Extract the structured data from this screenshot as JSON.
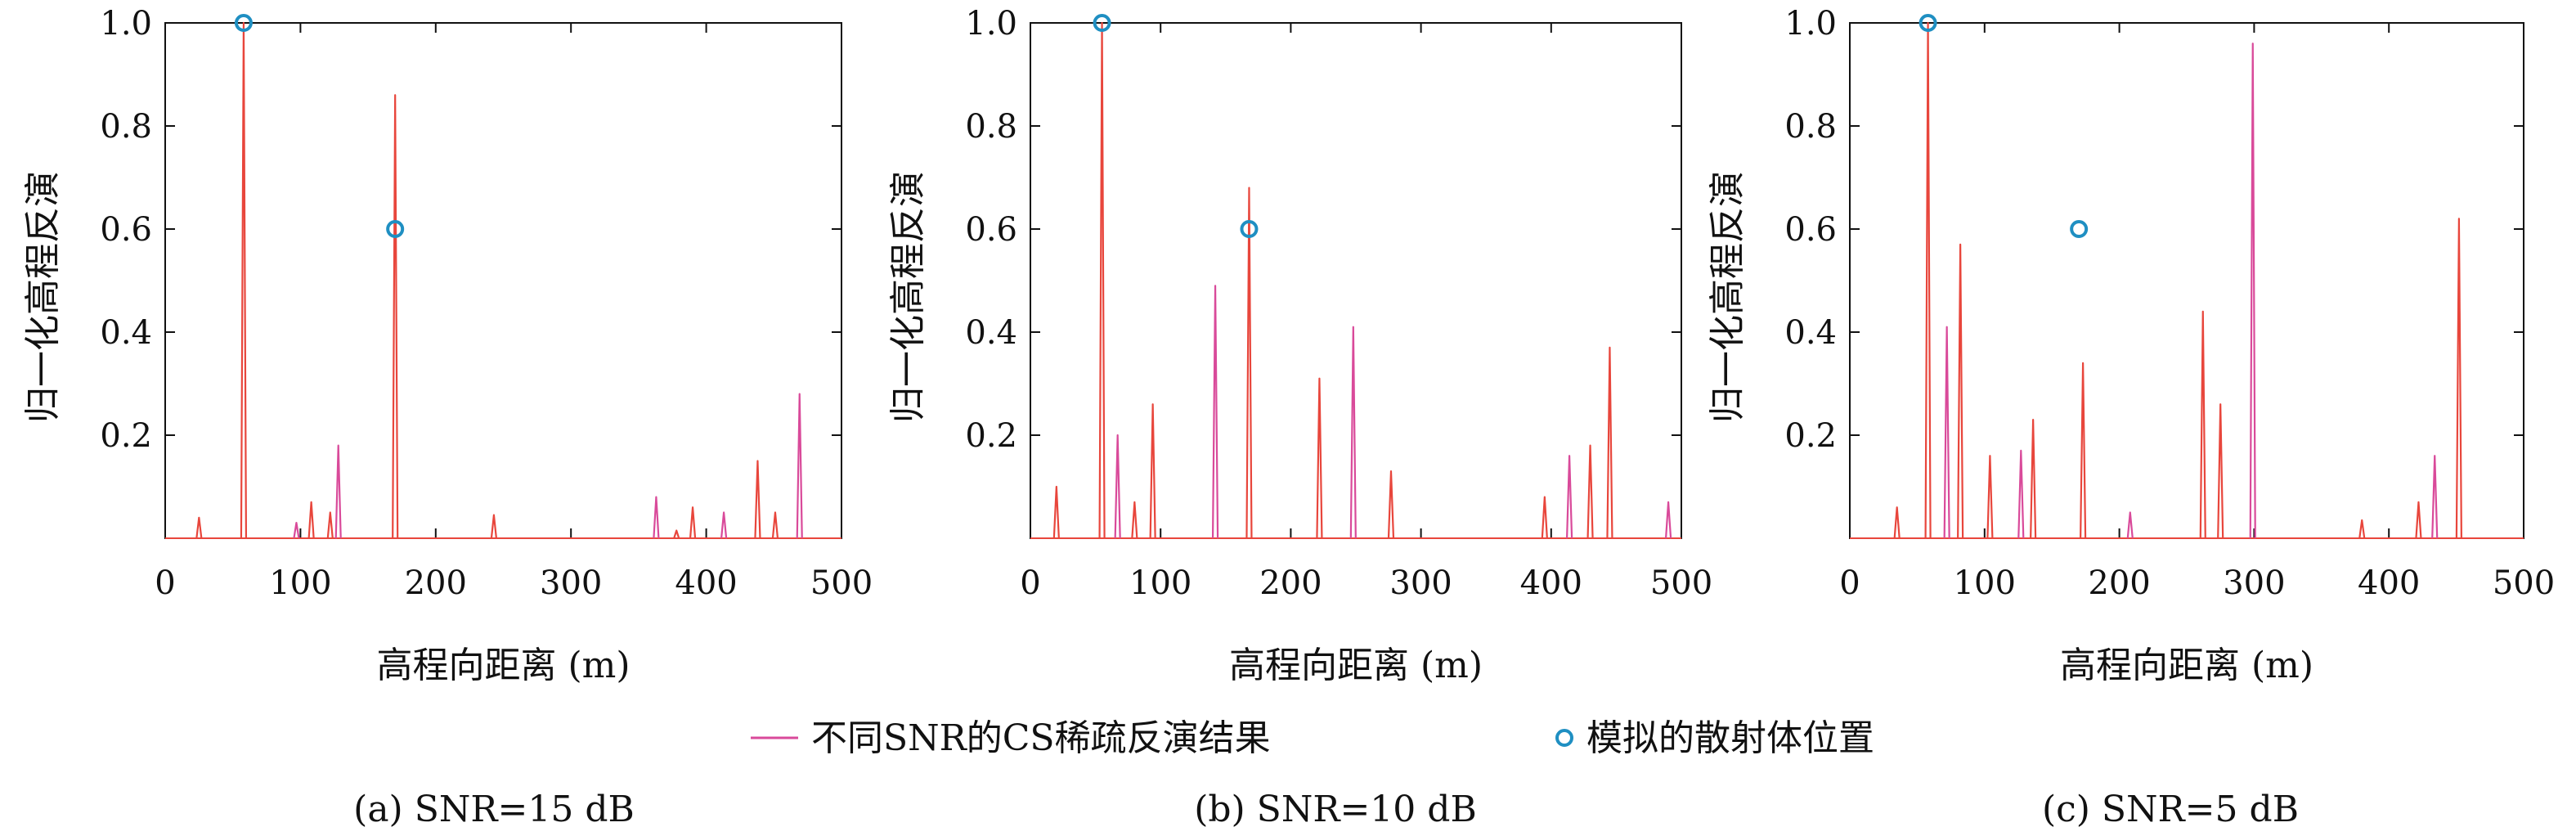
{
  "colors": {
    "sim_line": "#e8463c",
    "sim_line_alt": "#d94a9a",
    "scatterer_marker": "#1f8fc2",
    "axis": "#111111"
  },
  "legend": {
    "line_label": "不同SNR的CS稀疏反演结果",
    "marker_label": "模拟的散射体位置"
  },
  "chart_data": [
    {
      "type": "line",
      "caption": "(a) SNR=15 dB",
      "xlabel": "高程向距离 (m)",
      "ylabel": "归一化高程反演",
      "xlim": [
        0,
        500
      ],
      "ylim": [
        0,
        1.0
      ],
      "x_ticks": [
        "0",
        "100",
        "200",
        "300",
        "400",
        "500"
      ],
      "y_ticks": [
        "0.2",
        "0.4",
        "0.6",
        "0.8",
        "1.0"
      ],
      "series": [
        {
          "peaks_x": [
            25,
            58,
            97,
            108,
            122,
            128,
            170,
            243,
            363,
            378,
            390,
            413,
            438,
            451,
            469
          ],
          "peaks_y": [
            0.04,
            1.0,
            0.03,
            0.07,
            0.05,
            0.18,
            0.86,
            0.045,
            0.08,
            0.015,
            0.06,
            0.05,
            0.15,
            0.05,
            0.28
          ]
        }
      ],
      "scatterers": {
        "x": [
          58,
          170
        ],
        "y": [
          1.0,
          0.6
        ]
      }
    },
    {
      "type": "line",
      "caption": "(b) SNR=10 dB",
      "xlabel": "高程向距离 (m)",
      "ylabel": "归一化高程反演",
      "xlim": [
        0,
        500
      ],
      "ylim": [
        0,
        1.0
      ],
      "x_ticks": [
        "0",
        "100",
        "200",
        "300",
        "400",
        "500"
      ],
      "y_ticks": [
        "0.2",
        "0.4",
        "0.6",
        "0.8",
        "1.0"
      ],
      "series": [
        {
          "peaks_x": [
            20,
            55,
            67,
            80,
            94,
            142,
            168,
            222,
            248,
            277,
            395,
            414,
            430,
            445,
            490
          ],
          "peaks_y": [
            0.1,
            1.0,
            0.2,
            0.07,
            0.26,
            0.49,
            0.68,
            0.31,
            0.41,
            0.13,
            0.08,
            0.16,
            0.18,
            0.37,
            0.07
          ]
        }
      ],
      "scatterers": {
        "x": [
          55,
          168
        ],
        "y": [
          1.0,
          0.6
        ]
      }
    },
    {
      "type": "line",
      "caption": "(c) SNR=5 dB",
      "xlabel": "高程向距离 (m)",
      "ylabel": "归一化高程反演",
      "xlim": [
        0,
        500
      ],
      "ylim": [
        0,
        1.0
      ],
      "x_ticks": [
        "0",
        "100",
        "200",
        "300",
        "400",
        "500"
      ],
      "y_ticks": [
        "0.2",
        "0.4",
        "0.6",
        "0.8",
        "1.0"
      ],
      "series": [
        {
          "peaks_x": [
            35,
            58,
            72,
            82,
            104,
            127,
            136,
            173,
            208,
            262,
            275,
            299,
            380,
            422,
            434,
            452
          ],
          "peaks_y": [
            0.06,
            1.0,
            0.41,
            0.57,
            0.16,
            0.17,
            0.23,
            0.34,
            0.05,
            0.44,
            0.26,
            0.96,
            0.035,
            0.07,
            0.16,
            0.62
          ]
        }
      ],
      "scatterers": {
        "x": [
          58,
          170
        ],
        "y": [
          1.0,
          0.6
        ]
      }
    }
  ]
}
